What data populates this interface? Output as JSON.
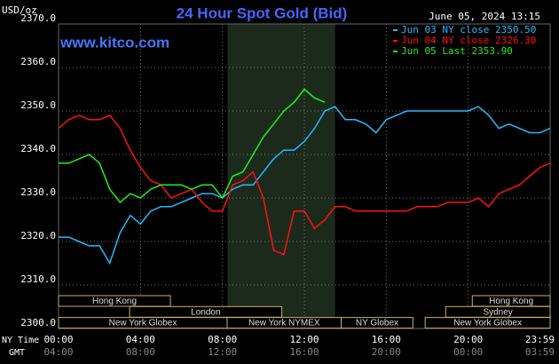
{
  "chart_data": {
    "type": "line",
    "title": "24 Hour Spot Gold (Bid)",
    "y_unit": "USD/oz",
    "timestamp": "June 05, 2024 13:15",
    "watermark": "www.kitco.com",
    "x_label": "NY Time",
    "x2_label": "GMT",
    "x": [
      0,
      0.5,
      1,
      1.5,
      2,
      2.5,
      3,
      3.5,
      4,
      4.5,
      5,
      5.5,
      6,
      6.5,
      7,
      7.5,
      8,
      8.5,
      9,
      9.5,
      10,
      10.5,
      11,
      11.5,
      12,
      12.5,
      13,
      13.5,
      14,
      14.5,
      15,
      15.5,
      16,
      16.5,
      17,
      17.5,
      18,
      18.5,
      19,
      19.5,
      20,
      20.5,
      21,
      21.5,
      22,
      22.5,
      23,
      23.5,
      24
    ],
    "series": [
      {
        "name": "Jun 03 NY close 2350.50",
        "color": "#22bbff",
        "values": [
          2321,
          2321,
          2320,
          2319,
          2319,
          2315,
          2322,
          2326,
          2324,
          2327,
          2328,
          2328,
          2329,
          2330,
          2331,
          2331,
          2330,
          2332,
          2333,
          2333,
          2336,
          2339,
          2341,
          2341,
          2343,
          2346,
          2350,
          2351,
          2348,
          2348,
          2347,
          2345,
          2348,
          2349,
          2350,
          2350,
          2350,
          2350,
          2350,
          2350,
          2350,
          2351,
          2349,
          2346,
          2347,
          2346,
          2345,
          2345,
          2346
        ]
      },
      {
        "name": "Jun 04 NY close 2326.30",
        "color": "#ff1111",
        "values": [
          2346,
          2348,
          2349,
          2348,
          2348,
          2349,
          2346,
          2341,
          2337,
          2334,
          2333,
          2330,
          2331,
          2332,
          2329,
          2327,
          2327,
          2333,
          2334,
          2336,
          2330,
          2318,
          2317,
          2327,
          2327,
          2323,
          2325,
          2328,
          2328,
          2327,
          2327,
          2327,
          2327,
          2327,
          2327,
          2328,
          2328,
          2328,
          2329,
          2329,
          2329,
          2330,
          2328,
          2331,
          2332,
          2333,
          2335,
          2337,
          2338
        ]
      },
      {
        "name": "Jun 05 Last 2353.90",
        "color": "#22ee22",
        "values": [
          2338,
          2338,
          2339,
          2340,
          2338,
          2332,
          2329,
          2331,
          2330,
          2332,
          2333,
          2333,
          2333,
          2332,
          2333,
          2333,
          2330,
          2335,
          2336,
          2340,
          2344,
          2347,
          2350,
          2352,
          2355,
          2353,
          2352,
          null,
          null,
          null,
          null,
          null,
          null,
          null,
          null,
          null,
          null,
          null,
          null,
          null,
          null,
          null,
          null,
          null,
          null,
          null,
          null,
          null,
          null
        ]
      }
    ],
    "xlim": [
      0,
      24
    ],
    "xticks": [
      {
        "value": 0,
        "label": "00:00"
      },
      {
        "value": 4,
        "label": "04:00"
      },
      {
        "value": 8,
        "label": "08:00"
      },
      {
        "value": 12,
        "label": "12:00"
      },
      {
        "value": 16,
        "label": "16:00"
      },
      {
        "value": 20,
        "label": "20:00"
      },
      {
        "value": 23.98,
        "label": "23:59"
      }
    ],
    "x_gmt_labels": [
      "04:00",
      "08:00",
      "12:00",
      "16:00",
      "20:00",
      "00:00",
      "03:59"
    ],
    "ylim": [
      2300,
      2370
    ],
    "yticks": [
      {
        "value": 2300,
        "label": "2300.0"
      },
      {
        "value": 2310,
        "label": "2310.0"
      },
      {
        "value": 2320,
        "label": "2320.0"
      },
      {
        "value": 2330,
        "label": "2330.0"
      },
      {
        "value": 2340,
        "label": "2340.0"
      },
      {
        "value": 2350,
        "label": "2350.0"
      },
      {
        "value": 2360,
        "label": "2360.0"
      },
      {
        "value": 2370,
        "label": "2370.0"
      }
    ],
    "grid": true,
    "highlight": [
      8.25,
      13.5
    ],
    "sessions": [
      {
        "label": "Hong Kong",
        "start": 0,
        "end": 5.46
      },
      {
        "label": "Hong Kong",
        "start": 20.2,
        "end": 24
      },
      {
        "label": "London",
        "start": 3.47,
        "end": 10.9
      },
      {
        "label": "Sydney",
        "start": 18.9,
        "end": 24
      },
      {
        "label": "New York Globex",
        "start": 0,
        "end": 8.23
      },
      {
        "label": "New York NYMEX",
        "start": 8.23,
        "end": 13.8
      },
      {
        "label": "NY Globex",
        "start": 13.8,
        "end": 17.3
      },
      {
        "label": "New York Globex",
        "start": 17.9,
        "end": 24
      }
    ]
  }
}
